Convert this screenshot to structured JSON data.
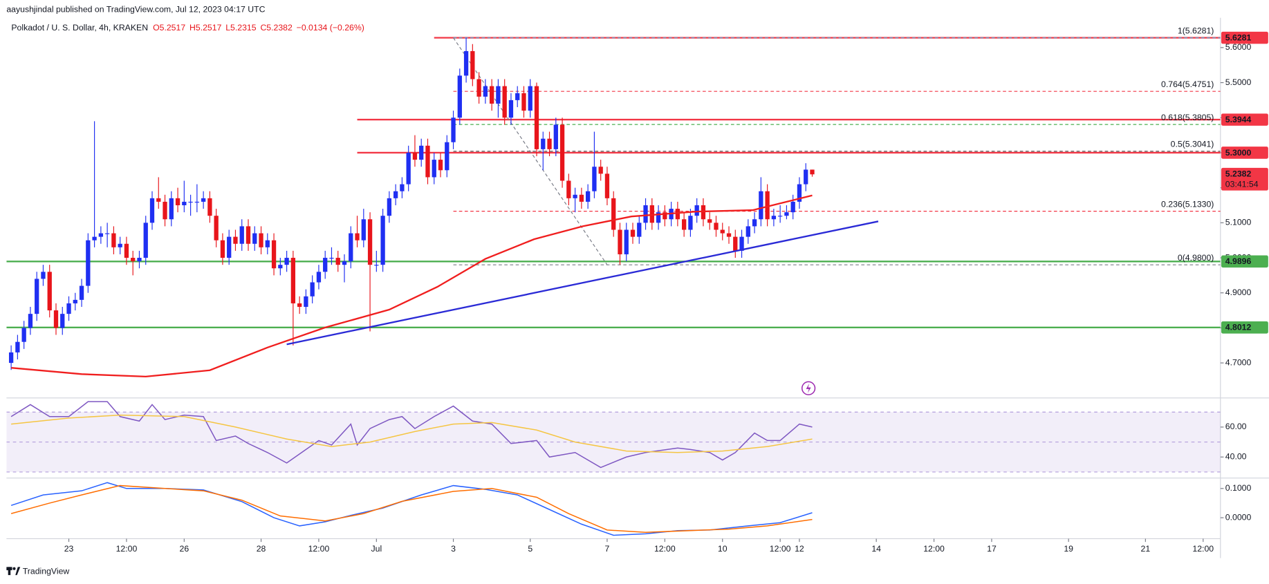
{
  "header": {
    "publisher": "aayushjindal published on TradingView.com, Jul 12, 2023 04:17 UTC",
    "symbol": "Polkadot / U. S. Dollar, 4h, KRAKEN",
    "ohlc": [
      "O5.2517",
      "H5.2517",
      "L5.2315",
      "C5.2382",
      "−0.0134 (−0.26%)"
    ]
  },
  "footer": {
    "brand": "TradingView"
  },
  "chart_data": [
    {
      "type": "candlestick",
      "up_color": "#1f2ff2",
      "down_color": "#e8151b",
      "open": [
        4.7,
        4.73,
        4.76,
        4.8,
        4.84,
        4.94,
        4.96,
        4.85,
        4.8,
        4.84,
        4.87,
        4.88,
        4.92,
        5.05,
        5.06,
        5.07,
        5.07,
        5.03,
        5.04,
        5.0,
        4.99,
        5.0,
        5.1,
        5.17,
        5.16,
        5.11,
        5.17,
        5.15,
        5.16,
        5.16,
        5.16,
        5.17,
        5.12,
        5.05,
        5.0,
        5.06,
        5.04,
        5.09,
        5.04,
        5.07,
        5.03,
        5.05,
        4.97,
        4.98,
        5.0,
        4.87,
        4.86,
        4.89,
        4.93,
        4.96,
        5.0,
        5.0,
        4.98,
        4.99,
        5.07,
        5.05,
        5.11,
        4.98,
        4.98,
        5.12,
        5.17,
        5.19,
        5.21,
        5.3,
        5.28,
        5.32,
        5.23,
        5.28,
        5.25,
        5.33,
        5.4,
        5.52,
        5.59,
        5.51,
        5.46,
        5.49,
        5.44,
        5.49,
        5.4,
        5.45,
        5.47,
        5.42,
        5.49,
        5.31,
        5.34,
        5.31,
        5.38,
        5.22,
        5.17,
        5.18,
        5.16,
        5.19,
        5.26,
        5.24,
        5.17,
        5.08,
        5.01,
        5.08,
        5.06,
        5.1,
        5.15,
        5.1,
        5.13,
        5.11,
        5.14,
        5.11,
        5.08,
        5.12,
        5.15,
        5.11,
        5.1,
        5.08,
        5.07,
        5.06,
        5.02,
        5.06,
        5.09,
        5.11,
        5.19,
        5.11,
        5.12,
        5.12,
        5.13,
        5.16,
        5.21,
        5.2517
      ],
      "high": [
        4.75,
        4.78,
        4.82,
        4.86,
        4.96,
        4.98,
        4.98,
        4.87,
        4.86,
        4.89,
        4.9,
        4.94,
        5.07,
        5.39,
        5.09,
        5.1,
        5.09,
        5.06,
        5.06,
        5.02,
        5.02,
        5.12,
        5.19,
        5.23,
        5.18,
        5.19,
        5.2,
        5.22,
        5.18,
        5.21,
        5.19,
        5.19,
        5.14,
        5.07,
        5.08,
        5.08,
        5.11,
        5.11,
        5.09,
        5.09,
        5.07,
        5.07,
        5.0,
        5.02,
        5.02,
        4.89,
        4.91,
        4.95,
        4.98,
        5.02,
        5.03,
        5.02,
        5.01,
        5.09,
        5.12,
        5.14,
        5.13,
        5.02,
        5.14,
        5.19,
        5.21,
        5.23,
        5.32,
        5.35,
        5.34,
        5.34,
        5.3,
        5.3,
        5.35,
        5.42,
        5.54,
        5.628,
        5.61,
        5.53,
        5.51,
        5.51,
        5.51,
        5.51,
        5.47,
        5.49,
        5.49,
        5.51,
        5.5,
        5.36,
        5.36,
        5.4,
        5.4,
        5.24,
        5.2,
        5.2,
        5.21,
        5.36,
        5.28,
        5.26,
        5.19,
        5.1,
        5.1,
        5.1,
        5.12,
        5.17,
        5.17,
        5.15,
        5.15,
        5.16,
        5.16,
        5.13,
        5.14,
        5.17,
        5.17,
        5.13,
        5.12,
        5.1,
        5.09,
        5.08,
        5.08,
        5.11,
        5.13,
        5.23,
        5.21,
        5.14,
        5.15,
        5.15,
        5.18,
        5.23,
        5.27,
        5.2517
      ],
      "low": [
        4.68,
        4.71,
        4.74,
        4.78,
        4.82,
        4.92,
        4.83,
        4.78,
        4.78,
        4.82,
        4.85,
        4.86,
        4.9,
        5.03,
        5.04,
        5.03,
        5.01,
        5.01,
        4.98,
        4.95,
        4.97,
        4.98,
        5.08,
        5.14,
        5.09,
        5.09,
        5.13,
        5.13,
        5.12,
        5.13,
        5.14,
        5.1,
        5.03,
        4.98,
        4.98,
        5.02,
        5.02,
        5.02,
        5.02,
        5.01,
        5.01,
        4.95,
        4.95,
        4.96,
        4.75,
        4.84,
        4.84,
        4.87,
        4.91,
        4.94,
        4.98,
        4.96,
        4.93,
        4.97,
        5.03,
        5.03,
        4.79,
        4.96,
        4.96,
        5.1,
        5.15,
        5.17,
        5.19,
        5.26,
        5.26,
        5.21,
        5.21,
        5.23,
        5.23,
        5.31,
        5.38,
        5.5,
        5.49,
        5.44,
        5.44,
        5.42,
        5.4,
        5.38,
        5.38,
        5.43,
        5.4,
        5.4,
        5.29,
        5.25,
        5.29,
        5.29,
        5.2,
        5.15,
        5.13,
        5.14,
        5.14,
        5.17,
        5.22,
        5.15,
        5.06,
        4.98,
        4.99,
        5.04,
        5.04,
        5.08,
        5.08,
        5.08,
        5.09,
        5.09,
        5.09,
        5.06,
        5.06,
        5.1,
        5.09,
        5.08,
        5.06,
        5.05,
        5.04,
        5.0,
        5.0,
        5.04,
        5.07,
        5.09,
        5.09,
        5.09,
        5.1,
        5.11,
        5.11,
        5.14,
        5.19,
        5.2315
      ],
      "close": [
        4.73,
        4.76,
        4.8,
        4.84,
        4.94,
        4.96,
        4.85,
        4.8,
        4.84,
        4.87,
        4.88,
        4.92,
        5.05,
        5.06,
        5.07,
        5.07,
        5.03,
        5.04,
        5.0,
        4.99,
        5.0,
        5.1,
        5.17,
        5.16,
        5.11,
        5.17,
        5.15,
        5.16,
        5.16,
        5.16,
        5.17,
        5.12,
        5.05,
        5.0,
        5.06,
        5.04,
        5.09,
        5.04,
        5.07,
        5.03,
        5.05,
        4.97,
        4.98,
        5.0,
        4.87,
        4.86,
        4.89,
        4.93,
        4.96,
        5.0,
        5.0,
        4.98,
        4.99,
        5.07,
        5.05,
        5.11,
        4.98,
        4.98,
        5.12,
        5.17,
        5.19,
        5.21,
        5.3,
        5.28,
        5.32,
        5.23,
        5.28,
        5.25,
        5.33,
        5.4,
        5.52,
        5.59,
        5.51,
        5.46,
        5.49,
        5.44,
        5.49,
        5.4,
        5.45,
        5.47,
        5.42,
        5.49,
        5.31,
        5.34,
        5.31,
        5.38,
        5.22,
        5.17,
        5.18,
        5.16,
        5.19,
        5.26,
        5.24,
        5.17,
        5.08,
        5.01,
        5.08,
        5.06,
        5.1,
        5.15,
        5.1,
        5.13,
        5.11,
        5.14,
        5.11,
        5.08,
        5.12,
        5.15,
        5.11,
        5.1,
        5.08,
        5.07,
        5.06,
        5.02,
        5.06,
        5.09,
        5.11,
        5.19,
        5.11,
        5.12,
        5.12,
        5.13,
        5.16,
        5.21,
        5.2517,
        5.2382
      ],
      "xlim": [
        -0.73,
        188.7
      ],
      "ylim": [
        4.6,
        5.685
      ],
      "yticks": [
        {
          "value": 4.7,
          "label": "4.7000"
        },
        {
          "value": 4.8,
          "label": "4.8000"
        },
        {
          "value": 4.9,
          "label": "4.9000"
        },
        {
          "value": 5.0,
          "label": "5.0000"
        },
        {
          "value": 5.1,
          "label": "5.1000"
        },
        {
          "value": 5.2,
          "label": "5.2000"
        },
        {
          "value": 5.3,
          "label": "5.3000"
        },
        {
          "value": 5.4,
          "label": "5.4000"
        },
        {
          "value": 5.5,
          "label": "5.5000"
        },
        {
          "value": 5.6,
          "label": "5.6000"
        }
      ],
      "xticks": [
        {
          "value": 9,
          "label": "23"
        },
        {
          "value": 18,
          "label": "12:00"
        },
        {
          "value": 27,
          "label": "26"
        },
        {
          "value": 39,
          "label": "28"
        },
        {
          "value": 48,
          "label": "12:00"
        },
        {
          "value": 57,
          "label": "Jul"
        },
        {
          "value": 69,
          "label": "3"
        },
        {
          "value": 81,
          "label": "5"
        },
        {
          "value": 93,
          "label": "7"
        },
        {
          "value": 102,
          "label": "12:00"
        },
        {
          "value": 111,
          "label": "10"
        },
        {
          "value": 120,
          "label": "12:00"
        },
        {
          "value": 123,
          "label": "12"
        },
        {
          "value": 135,
          "label": "14"
        },
        {
          "value": 144,
          "label": "12:00"
        },
        {
          "value": 153,
          "label": "17"
        },
        {
          "value": 165,
          "label": "19"
        },
        {
          "value": 177,
          "label": "21"
        },
        {
          "value": 186,
          "label": "12:00"
        }
      ],
      "grid": false,
      "series": [
        {
          "color": "#f01e1e",
          "x": [
            0,
            11,
            21,
            31,
            40,
            49,
            59,
            66.5,
            74,
            81.6,
            89.2,
            96.8,
            107,
            115.7,
            125
          ],
          "values": [
            4.686,
            4.668,
            4.661,
            4.679,
            4.744,
            4.801,
            4.852,
            4.917,
            4.997,
            5.053,
            5.09,
            5.118,
            5.132,
            5.136,
            5.178
          ]
        },
        {
          "color": "#2a2ad6",
          "x": [
            43,
            135.3
          ],
          "values": [
            4.753,
            5.104
          ]
        }
      ],
      "horizontal_lines": [
        {
          "price": 5.6281,
          "label": "5.6281",
          "color": "#f23645",
          "from": 66
        },
        {
          "price": 5.3944,
          "label": "5.3944",
          "color": "#f23645",
          "from": 54
        },
        {
          "price": 5.3,
          "label": "5.3000",
          "color": "#f23645",
          "from": 54
        },
        {
          "price": 4.9896,
          "label": "4.9896",
          "color": "#4caf50"
        },
        {
          "price": 4.8012,
          "label": "4.8012",
          "color": "#4caf50"
        }
      ],
      "fib_from": 69,
      "fib_levels": [
        {
          "label": "1(5.6281)",
          "price": 5.6281,
          "color": "#5d9cc9"
        },
        {
          "label": "0.764(5.4751)",
          "price": 5.4751,
          "color": "#f23645"
        },
        {
          "label": "0.618(5.3805)",
          "price": 5.3805,
          "color": "#4caf50"
        },
        {
          "label": "0.5(5.3041)",
          "price": 5.3041,
          "color": "#555"
        },
        {
          "label": "0.236(5.1330)",
          "price": 5.133,
          "color": "#f23645"
        },
        {
          "label": "0(4.9800)",
          "price": 4.98,
          "color": "#787b86"
        }
      ],
      "fib_diagonal": {
        "x": [
          69,
          93
        ],
        "values": [
          5.6281,
          4.98
        ]
      },
      "last_price": {
        "price": 5.2382,
        "label": "5.2382",
        "countdown": "03:41:54"
      }
    },
    {
      "type": "line",
      "ylim": [
        26.5,
        78.9
      ],
      "yticks": [
        {
          "value": 60,
          "label": "60.00"
        },
        {
          "value": 40,
          "label": "40.00"
        }
      ],
      "band": [
        30,
        70
      ],
      "midline": 50,
      "series": [
        {
          "color": "#7e57c2",
          "x": [
            0,
            3,
            6,
            9,
            12,
            15,
            17,
            20,
            22,
            24,
            27,
            30,
            32,
            35,
            37,
            40,
            43,
            46,
            48,
            50,
            53,
            54,
            56,
            59,
            61,
            63,
            66,
            69,
            72,
            75,
            78,
            82,
            84,
            88,
            92,
            96,
            99,
            104,
            106,
            109,
            111,
            113,
            116,
            118,
            120,
            123,
            125
          ],
          "values": [
            67,
            75,
            67,
            67,
            77,
            77,
            67,
            64,
            75,
            65,
            68,
            67,
            51,
            54,
            49,
            43,
            36,
            45,
            51,
            48,
            62,
            48,
            59,
            65,
            67,
            59,
            67,
            74,
            64,
            62,
            49,
            51,
            40,
            43,
            33,
            40,
            43,
            46,
            45,
            43,
            38,
            43,
            56,
            51,
            51,
            62,
            60
          ]
        },
        {
          "color": "#f5c542",
          "x": [
            0,
            9,
            17,
            27,
            35,
            43,
            50,
            56,
            63,
            69,
            75,
            82,
            88,
            96,
            104,
            111,
            118,
            125
          ],
          "values": [
            62,
            66,
            68,
            67,
            60,
            52,
            47,
            50,
            57,
            62,
            63,
            58,
            50,
            44,
            43,
            44,
            47,
            52
          ]
        }
      ]
    },
    {
      "type": "line",
      "ylim": [
        -0.069,
        0.133
      ],
      "yticks": [
        {
          "value": 0.1,
          "label": "0.1000"
        },
        {
          "value": 0,
          "label": "0.0000"
        }
      ],
      "series": [
        {
          "color": "#2962ff",
          "x": [
            0,
            5,
            11,
            15,
            18,
            24,
            30,
            36,
            41,
            45,
            49,
            53,
            58,
            64,
            69,
            74,
            79,
            84,
            89,
            94,
            99,
            104,
            109,
            115,
            120,
            125
          ],
          "values": [
            0.042,
            0.078,
            0.092,
            0.12,
            0.1,
            0.1,
            0.095,
            0.055,
            0,
            -0.028,
            -0.014,
            0.008,
            0.033,
            0.078,
            0.11,
            0.097,
            0.078,
            0.028,
            -0.022,
            -0.06,
            -0.055,
            -0.044,
            -0.042,
            -0.028,
            -0.017,
            0.017
          ]
        },
        {
          "color": "#ff6d00",
          "x": [
            0,
            6,
            11,
            17,
            24,
            30,
            36,
            42,
            49,
            55,
            61,
            69,
            75,
            82,
            87,
            93,
            99,
            106,
            112,
            118,
            125
          ],
          "values": [
            0.014,
            0.05,
            0.078,
            0.11,
            0.1,
            0.092,
            0.06,
            0.006,
            -0.011,
            0.014,
            0.056,
            0.09,
            0.1,
            0.07,
            0.014,
            -0.042,
            -0.05,
            -0.044,
            -0.039,
            -0.028,
            -0.006
          ]
        }
      ]
    }
  ]
}
